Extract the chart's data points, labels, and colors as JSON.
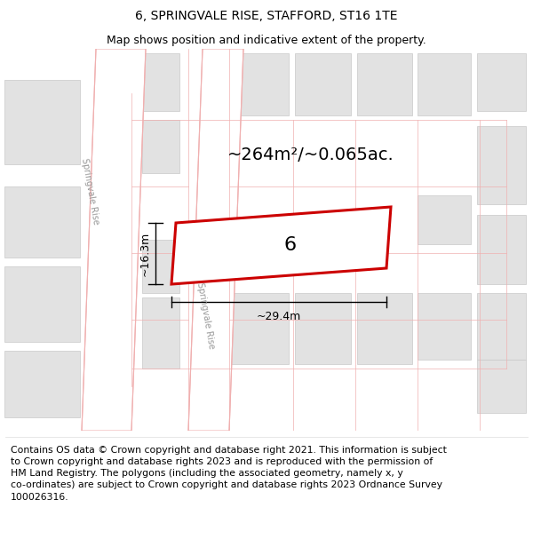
{
  "title_line1": "6, SPRINGVALE RISE, STAFFORD, ST16 1TE",
  "title_line2": "Map shows position and indicative extent of the property.",
  "footer_text": "Contains OS data © Crown copyright and database right 2021. This information is subject\nto Crown copyright and database rights 2023 and is reproduced with the permission of\nHM Land Registry. The polygons (including the associated geometry, namely x, y\nco-ordinates) are subject to Crown copyright and database rights 2023 Ordnance Survey\n100026316.",
  "area_label": "~264m²/~0.065ac.",
  "width_label": "~29.4m",
  "height_label": "~16.3m",
  "plot_number": "6",
  "bg_color": "#ffffff",
  "block_color": "#e2e2e2",
  "block_edge": "#c8c8c8",
  "road_line_color": "#f0b0b0",
  "red_outline": "#cc0000",
  "title_fontsize": 10,
  "subtitle_fontsize": 9,
  "footer_fontsize": 7.8,
  "area_fontsize": 14,
  "dim_fontsize": 9,
  "plot_label_fontsize": 16,
  "road_label_fontsize": 7
}
